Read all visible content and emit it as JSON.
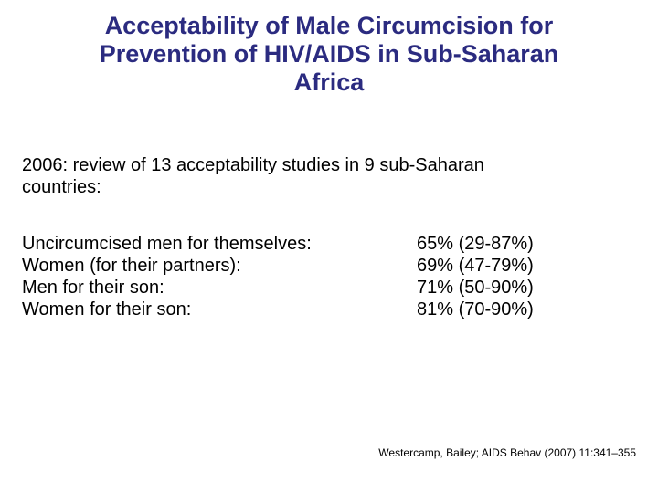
{
  "slide": {
    "title_lines": [
      "Acceptability of Male Circumcision for",
      "Prevention of HIV/AIDS in Sub-Saharan",
      "Africa"
    ],
    "intro_lines": [
      "2006: review of 13 acceptability studies in 9 sub-Saharan",
      "countries:"
    ],
    "stats": [
      {
        "label": "Uncircumcised men for themselves:",
        "value": "65% (29-87%)"
      },
      {
        "label": "Women (for their partners):",
        "value": "69% (47-79%)"
      },
      {
        "label": "Men for their son:",
        "value": "71% (50-90%)"
      },
      {
        "label": "Women for their son:",
        "value": "81% (70-90%)"
      }
    ],
    "citation": "Westercamp,  Bailey; AIDS Behav (2007) 11:341–355"
  },
  "colors": {
    "title": "#2b2b80",
    "body_text": "#000000",
    "background": "#ffffff"
  }
}
